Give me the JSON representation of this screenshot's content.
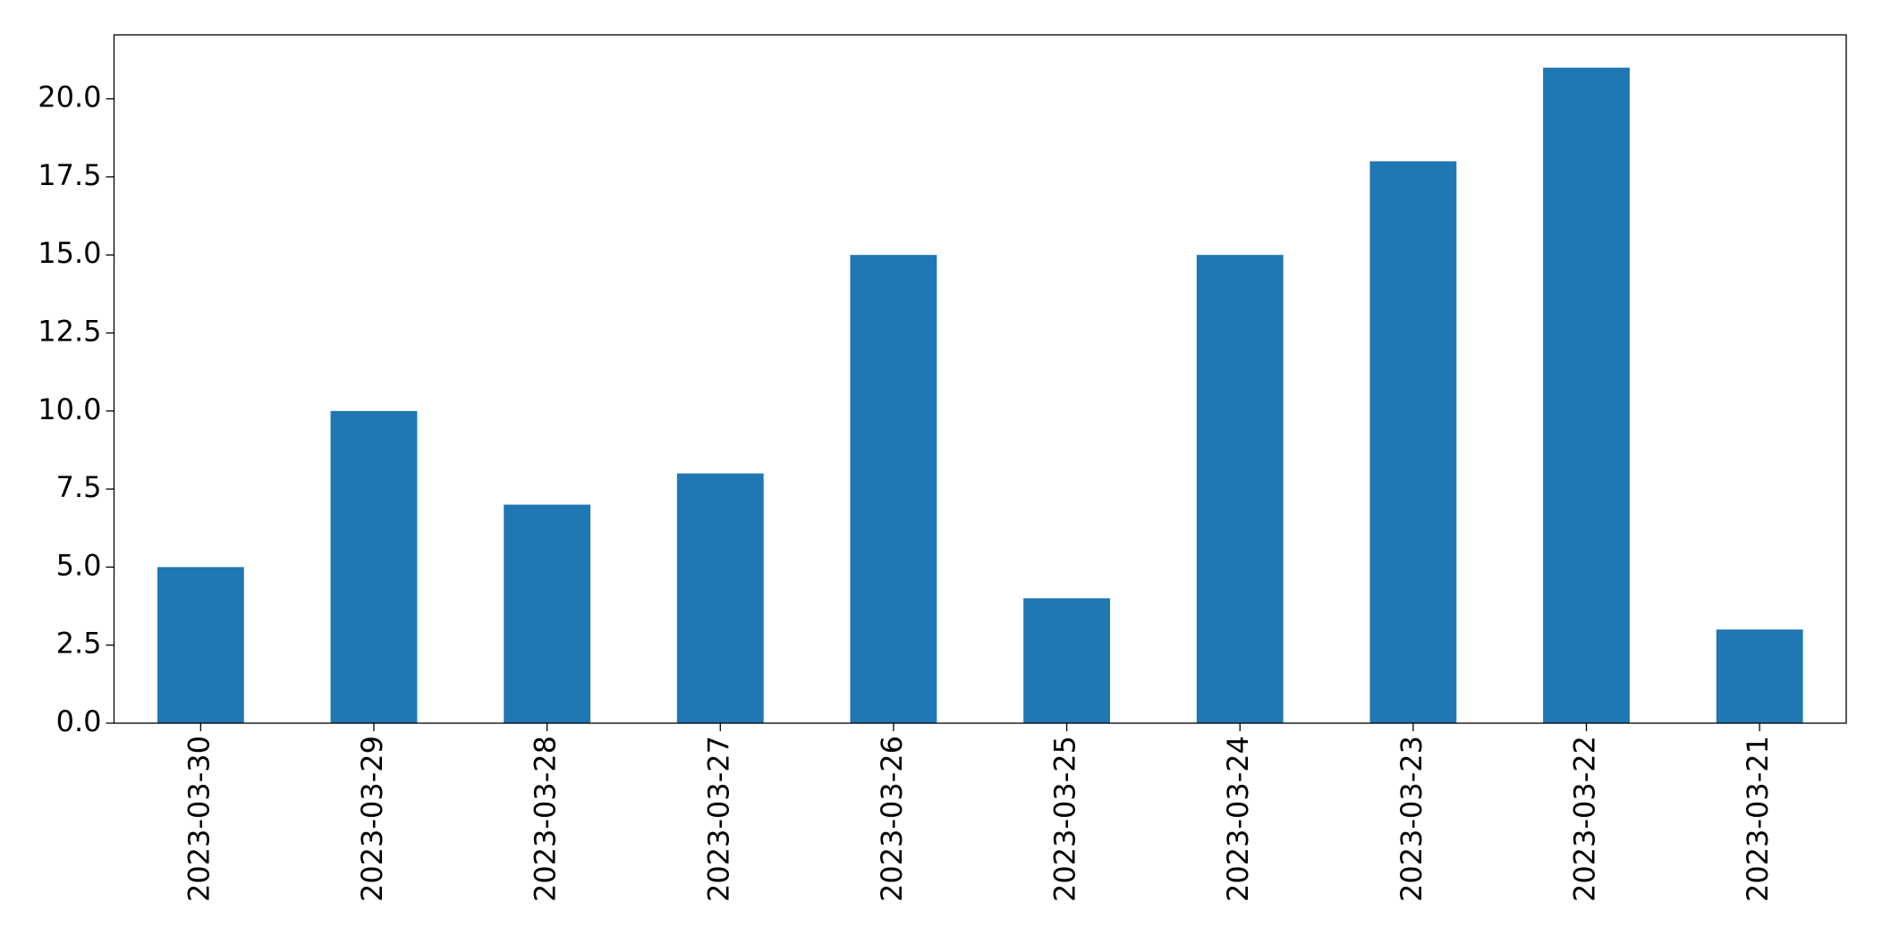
{
  "chart_data": {
    "type": "bar",
    "categories": [
      "2023-03-30",
      "2023-03-29",
      "2023-03-28",
      "2023-03-27",
      "2023-03-26",
      "2023-03-25",
      "2023-03-24",
      "2023-03-23",
      "2023-03-22",
      "2023-03-21"
    ],
    "values": [
      5,
      10,
      7,
      8,
      15,
      4,
      15,
      18,
      21,
      3
    ],
    "color": "#1f77b4",
    "ylim": [
      0,
      22.05
    ],
    "yticks": [
      {
        "value": 0,
        "label": "0.0"
      },
      {
        "value": 2.5,
        "label": "2.5"
      },
      {
        "value": 5,
        "label": "5.0"
      },
      {
        "value": 7.5,
        "label": "7.5"
      },
      {
        "value": 10,
        "label": "10.0"
      },
      {
        "value": 12.5,
        "label": "12.5"
      },
      {
        "value": 15,
        "label": "15.0"
      },
      {
        "value": 17.5,
        "label": "17.5"
      },
      {
        "value": 20,
        "label": "20.0"
      }
    ],
    "grid": false
  }
}
